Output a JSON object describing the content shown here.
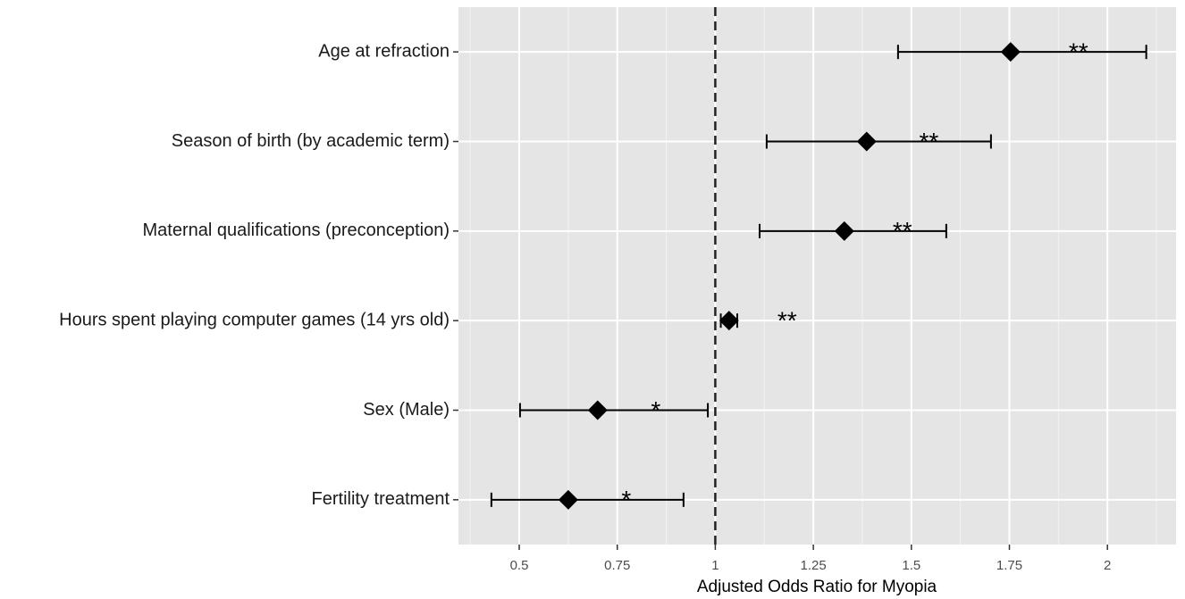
{
  "chart_data": {
    "type": "forest",
    "x_label": "Adjusted Odds Ratio for Myopia",
    "categories": [
      "Age at refraction",
      "Season of birth (by academic term)",
      "Maternal qualifications (preconception)",
      "Hours spent playing computer games (14 yrs old)",
      "Sex (Male)",
      "Fertility treatment"
    ],
    "values": [
      1.753,
      1.386,
      1.329,
      1.035,
      0.7,
      0.625
    ],
    "lower": [
      1.466,
      1.131,
      1.113,
      1.014,
      0.502,
      0.429
    ],
    "upper": [
      2.099,
      1.703,
      1.589,
      1.056,
      0.981,
      0.919
    ],
    "significance": [
      "**",
      "**",
      "**",
      "**",
      "*",
      "*"
    ],
    "xlim": [
      0.345,
      2.175
    ],
    "xticks": [
      0.5,
      0.75,
      1,
      1.25,
      1.5,
      1.75,
      2
    ],
    "reference_line": 1,
    "grid": true,
    "color": "#000000"
  }
}
